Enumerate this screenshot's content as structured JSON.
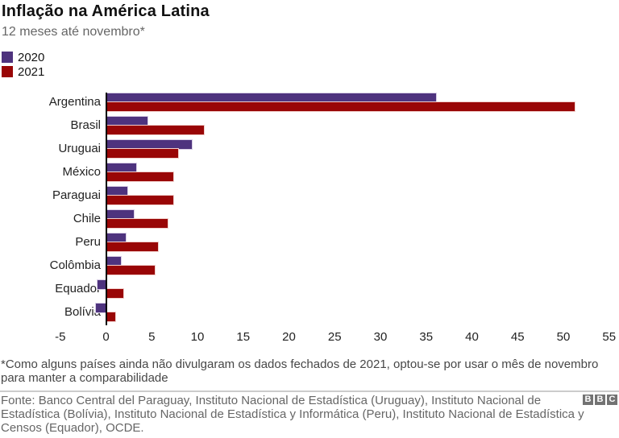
{
  "header": {
    "title": "Inflação na América Latina",
    "subtitle": "12 meses até novembro*"
  },
  "chart_data": {
    "type": "bar",
    "orientation": "horizontal",
    "title": "Inflação na América Latina",
    "subtitle": "12 meses até novembro*",
    "categories": [
      "Argentina",
      "Brasil",
      "Uruguai",
      "México",
      "Paraguai",
      "Chile",
      "Peru",
      "Colômbia",
      "Equador",
      "Bolívia"
    ],
    "series": [
      {
        "name": "2020",
        "color": "#4e337e",
        "halo": "#d9cfe6",
        "values": [
          36.1,
          4.5,
          9.4,
          3.3,
          2.3,
          3.0,
          2.2,
          1.6,
          -0.9,
          -1.1
        ]
      },
      {
        "name": "2021",
        "color": "#990606",
        "halo": "#f1cfcb",
        "values": [
          51.2,
          10.7,
          7.9,
          7.4,
          7.4,
          6.7,
          5.7,
          5.3,
          1.9,
          1.0
        ]
      }
    ],
    "xlim": [
      -5,
      55
    ],
    "xticks": [
      -5,
      0,
      5,
      10,
      15,
      20,
      25,
      30,
      35,
      40,
      45,
      50,
      55
    ],
    "grid": false,
    "legend_position": "top-left",
    "unit": "%"
  },
  "footnote": "*Como alguns países ainda não divulgaram os dados fechados de 2021, optou-se por usar o mês de novembro para manter a comparabilidade",
  "source": "Fonte: Banco Central del Paraguay, Instituto Nacional de Estadística (Uruguay), Instituto Nacional de Estadística (Bolívia), Instituto Nacional de Estadística y Informática (Peru), Instituto Nacional de Estadística y Censos (Equador), OCDE.",
  "logo": {
    "letters": [
      "B",
      "B",
      "C"
    ]
  },
  "colors": {
    "series_2020": "#4e337e",
    "series_2021": "#990606",
    "axis": "#000000",
    "text": "#222222",
    "muted": "#666666",
    "divider": "#cccccc",
    "logo_gray": "#737373"
  }
}
